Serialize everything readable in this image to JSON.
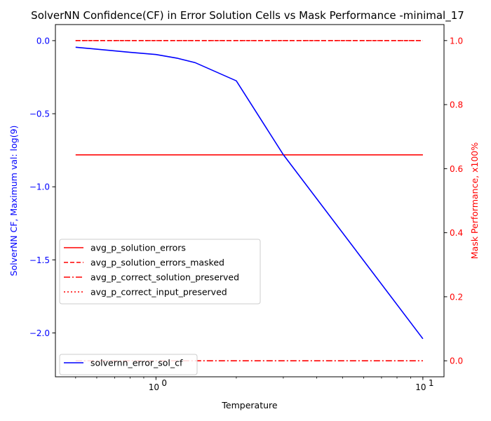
{
  "chart_data": {
    "type": "line",
    "title": "SolverNN Confidence(CF) in Error Solution Cells vs Mask Performance -minimal_17",
    "xlabel": "Temperature",
    "x_scale": "log",
    "x_ticks": [
      {
        "value": 1,
        "label": "10",
        "exp": "0"
      },
      {
        "value": 10,
        "label": "10",
        "exp": "1"
      }
    ],
    "x": [
      0.5,
      0.8,
      1.0,
      1.2,
      1.4,
      2.0,
      3.0,
      10.0
    ],
    "left_axis": {
      "label": "SolverNN CF, Maximum val: log(9)",
      "color": "#0000ff",
      "ylim": [
        -2.3,
        0.11
      ],
      "ticks": [
        0.0,
        -0.5,
        -1.0,
        -1.5,
        -2.0
      ],
      "tick_labels": [
        "0.0",
        "−0.5",
        "−1.0",
        "−1.5",
        "−2.0"
      ]
    },
    "right_axis": {
      "label": "Mask Performance, x100%",
      "color": "#ff0000",
      "ylim": [
        -0.05,
        1.05
      ],
      "ticks": [
        0.0,
        0.2,
        0.4,
        0.6,
        0.8,
        1.0
      ],
      "tick_labels": [
        "0.0",
        "0.2",
        "0.4",
        "0.6",
        "0.8",
        "1.0"
      ]
    },
    "series_right": [
      {
        "name": "avg_p_solution_errors",
        "color": "#ff0000",
        "dash": "solid",
        "values": [
          0.643,
          0.643,
          0.643,
          0.643,
          0.643,
          0.643,
          0.643,
          0.643
        ]
      },
      {
        "name": "avg_p_solution_errors_masked",
        "color": "#ff0000",
        "dash": "dashed",
        "values": [
          1.0,
          1.0,
          1.0,
          1.0,
          1.0,
          1.0,
          1.0,
          1.0
        ]
      },
      {
        "name": "avg_p_correct_solution_preserved",
        "color": "#ff0000",
        "dash": "dashdot",
        "values": [
          0.0,
          0.0,
          0.0,
          0.0,
          0.0,
          0.0,
          0.0,
          0.0
        ]
      },
      {
        "name": "avg_p_correct_input_preserved",
        "color": "#ff0000",
        "dash": "dotted",
        "values": [
          1.0,
          1.0,
          1.0,
          1.0,
          1.0,
          1.0,
          1.0,
          1.0
        ]
      }
    ],
    "series_left": [
      {
        "name": "solvernn_error_sol_cf",
        "color": "#0000ff",
        "dash": "solid",
        "values": [
          -0.045,
          -0.08,
          -0.095,
          -0.12,
          -0.15,
          -0.275,
          -0.78,
          -2.04
        ]
      }
    ],
    "legend_right_placement": "center-left",
    "legend_left_placement": "lower-left",
    "grid": false
  }
}
